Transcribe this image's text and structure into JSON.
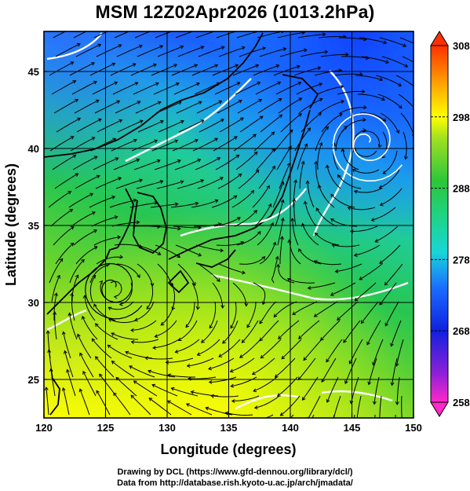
{
  "title": "MSM 12Z02Apr2026 (1013.2hPa)",
  "x_axis": {
    "label": "Longitude (degrees)",
    "ticks": [
      "120",
      "125",
      "130",
      "135",
      "140",
      "145",
      "150"
    ]
  },
  "y_axis": {
    "label": "Latitude  (degrees)",
    "ticks": [
      "25",
      "30",
      "35",
      "40",
      "45"
    ]
  },
  "colorbar": {
    "ticks": [
      "308",
      "298",
      "288",
      "278",
      "268",
      "258"
    ]
  },
  "footer": {
    "line1": "Drawing by DCL (https://www.gfd-dennou.org/library/dcl/)",
    "line2": "Data from http://database.rish.kyoto-u.ac.jp/arch/jmadata/"
  },
  "colors": {
    "cold": "#1a50ff",
    "cool": "#18d6d0",
    "mild": "#2cc63a",
    "warm": "#c8e61a",
    "hot": "#ffff00",
    "contour": "#ffffff"
  },
  "map_data": {
    "extent": {
      "lon": [
        120,
        150
      ],
      "lat": [
        22.5,
        47.6
      ]
    },
    "grid_lon": [
      125,
      130,
      135,
      140,
      145
    ],
    "grid_lat": [
      25,
      30,
      35,
      40,
      45
    ],
    "colorbar_range": [
      258,
      308
    ],
    "cyclones": [
      {
        "lon": 146.2,
        "lat": 40.4
      },
      {
        "lon": 125.6,
        "lat": 31.0
      }
    ]
  }
}
